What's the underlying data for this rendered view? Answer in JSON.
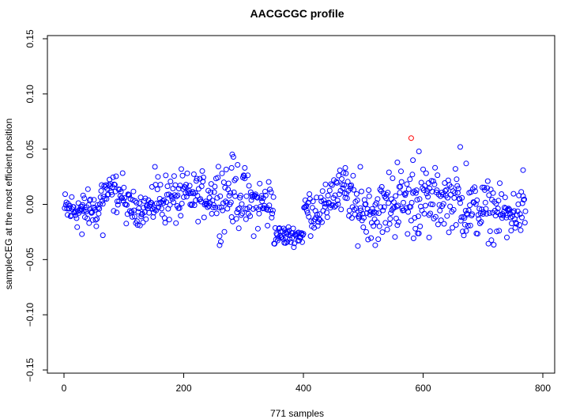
{
  "chart_data": {
    "type": "scatter",
    "title": "AACGCGC profile",
    "xlabel": "771 samples",
    "ylabel": "sampleCEG at the most efficient position",
    "xlim": [
      -30,
      800
    ],
    "ylim": [
      -0.15,
      0.15
    ],
    "x_ticks": [
      0,
      200,
      400,
      600,
      800
    ],
    "x_tick_labels": [
      "0",
      "200",
      "400",
      "600",
      "800"
    ],
    "y_ticks": [
      -0.15,
      -0.1,
      -0.05,
      0.0,
      0.05,
      0.1,
      0.15
    ],
    "y_tick_labels": [
      "−0.15",
      "−0.10",
      "−0.05",
      "0.00",
      "0.05",
      "0.10",
      "0.15"
    ],
    "grid": false,
    "legend": "none",
    "marker": "open-circle",
    "point_color": "#0000ff",
    "highlight_color": "#ff0000",
    "highlight_point": {
      "x": 580,
      "y": 0.06
    },
    "series_segments": [
      {
        "x_start": 1,
        "x_end": 60,
        "center": -0.005,
        "spread": 0.012
      },
      {
        "x_start": 61,
        "x_end": 100,
        "center": 0.01,
        "spread": 0.012
      },
      {
        "x_start": 101,
        "x_end": 150,
        "center": -0.003,
        "spread": 0.01
      },
      {
        "x_start": 151,
        "x_end": 200,
        "center": 0.005,
        "spread": 0.016
      },
      {
        "x_start": 201,
        "x_end": 250,
        "center": 0.008,
        "spread": 0.014
      },
      {
        "x_start": 251,
        "x_end": 300,
        "center": 0.01,
        "spread": 0.022
      },
      {
        "x_start": 301,
        "x_end": 350,
        "center": 0.0,
        "spread": 0.018
      },
      {
        "x_start": 351,
        "x_end": 400,
        "center": -0.028,
        "spread": 0.006
      },
      {
        "x_start": 401,
        "x_end": 440,
        "center": -0.005,
        "spread": 0.014
      },
      {
        "x_start": 441,
        "x_end": 480,
        "center": 0.01,
        "spread": 0.016
      },
      {
        "x_start": 481,
        "x_end": 540,
        "center": -0.005,
        "spread": 0.018
      },
      {
        "x_start": 541,
        "x_end": 600,
        "center": 0.002,
        "spread": 0.022
      },
      {
        "x_start": 601,
        "x_end": 660,
        "center": 0.005,
        "spread": 0.018
      },
      {
        "x_start": 661,
        "x_end": 720,
        "center": -0.005,
        "spread": 0.018
      },
      {
        "x_start": 721,
        "x_end": 771,
        "center": -0.008,
        "spread": 0.015
      }
    ],
    "notable_points": [
      {
        "x": 152,
        "y": 0.034
      },
      {
        "x": 280,
        "y": 0.033
      },
      {
        "x": 302,
        "y": 0.033
      },
      {
        "x": 470,
        "y": 0.033
      },
      {
        "x": 495,
        "y": 0.034
      },
      {
        "x": 557,
        "y": 0.038
      },
      {
        "x": 583,
        "y": 0.04
      },
      {
        "x": 593,
        "y": 0.048
      },
      {
        "x": 662,
        "y": 0.052
      },
      {
        "x": 672,
        "y": 0.037
      },
      {
        "x": 767,
        "y": 0.031
      },
      {
        "x": 260,
        "y": -0.037
      },
      {
        "x": 370,
        "y": -0.035
      },
      {
        "x": 520,
        "y": -0.037
      },
      {
        "x": 610,
        "y": -0.03
      },
      {
        "x": 740,
        "y": -0.03
      },
      {
        "x": 65,
        "y": -0.028
      },
      {
        "x": 30,
        "y": -0.027
      }
    ],
    "n_points": 771
  }
}
